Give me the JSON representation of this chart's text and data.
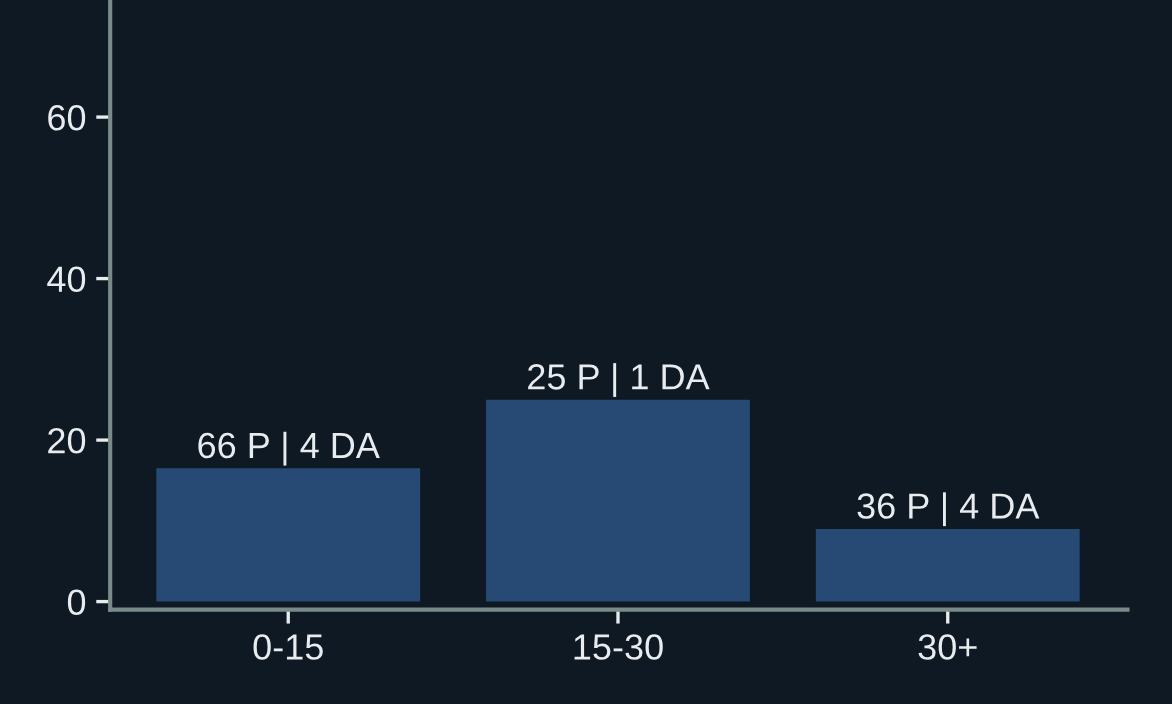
{
  "chart_data": {
    "type": "bar",
    "categories": [
      "0-15",
      "15-30",
      "30+"
    ],
    "values": [
      16.5,
      25,
      9
    ],
    "annotations": [
      {
        "text": "66 P | 4 DA",
        "x": "0-15",
        "y": 16.5
      },
      {
        "text": "25 P | 1 DA",
        "x": "15-30",
        "y": 25
      },
      {
        "text": "36 P | 4 DA",
        "x": "30+",
        "y": 9
      }
    ],
    "color": "#264a74",
    "ylim": [
      -1,
      74.5
    ],
    "yticks": [
      0,
      20,
      40,
      60
    ],
    "grid": false
  }
}
